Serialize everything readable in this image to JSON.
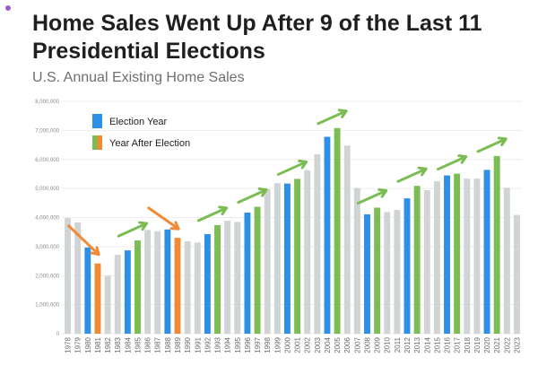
{
  "title": "Home Sales Went Up After 9 of the Last 11 Presidential Elections",
  "subtitle": "U.S. Annual Existing Home Sales",
  "colors": {
    "election": "#2e8fe6",
    "after_up": "#7bbd52",
    "after_down": "#f08a35",
    "other": "#d0d4d4",
    "arrow_up": "#7bbd52",
    "arrow_down": "#f08a35"
  },
  "chart_data": {
    "type": "bar",
    "title": "U.S. Annual Existing Home Sales",
    "ylim": [
      0,
      8000000
    ],
    "yticks": [
      0,
      1000000,
      2000000,
      3000000,
      4000000,
      5000000,
      6000000,
      7000000,
      8000000
    ],
    "ytick_labels": [
      "0",
      "1,000,000",
      "2,000,000",
      "3,000,000",
      "4,000,000",
      "5,000,000",
      "6,000,000",
      "7,000,000",
      "8,000,000"
    ],
    "grid": true,
    "legend_position": "top-left",
    "legend": [
      {
        "label": "Election Year",
        "color_key": "election"
      },
      {
        "label": "Year After Election",
        "color_key": "after_up"
      }
    ],
    "categories": [
      "1978",
      "1979",
      "1980",
      "1981",
      "1982",
      "1983",
      "1984",
      "1985",
      "1986",
      "1987",
      "1988",
      "1989",
      "1990",
      "1991",
      "1992",
      "1993",
      "1994",
      "1995",
      "1996",
      "1997",
      "1998",
      "1999",
      "2000",
      "2001",
      "2002",
      "2003",
      "2004",
      "2005",
      "2006",
      "2007",
      "2008",
      "2009",
      "2010",
      "2011",
      "2012",
      "2013",
      "2014",
      "2015",
      "2016",
      "2017",
      "2018",
      "2019",
      "2020",
      "2021",
      "2022",
      "2023"
    ],
    "values": [
      3980000,
      3830000,
      2970000,
      2420000,
      1990000,
      2720000,
      2870000,
      3210000,
      3570000,
      3530000,
      3590000,
      3300000,
      3180000,
      3140000,
      3430000,
      3740000,
      3890000,
      3850000,
      4170000,
      4370000,
      4970000,
      5180000,
      5170000,
      5330000,
      5630000,
      6180000,
      6780000,
      7080000,
      6480000,
      5020000,
      4110000,
      4340000,
      4190000,
      4260000,
      4660000,
      5090000,
      4940000,
      5250000,
      5450000,
      5510000,
      5340000,
      5340000,
      5640000,
      6120000,
      5030000,
      4090000
    ],
    "bar_types": [
      "other",
      "other",
      "election",
      "after_down",
      "other",
      "other",
      "election",
      "after_up",
      "other",
      "other",
      "election",
      "after_down",
      "other",
      "other",
      "election",
      "after_up",
      "other",
      "other",
      "election",
      "after_up",
      "other",
      "other",
      "election",
      "after_up",
      "other",
      "other",
      "election",
      "after_up",
      "other",
      "other",
      "election",
      "after_up",
      "other",
      "other",
      "election",
      "after_up",
      "other",
      "other",
      "election",
      "after_up",
      "other",
      "other",
      "election",
      "after_up",
      "other",
      "other"
    ],
    "arrows": [
      {
        "from": "1980",
        "to": "1981",
        "direction": "down"
      },
      {
        "from": "1984",
        "to": "1985",
        "direction": "up"
      },
      {
        "from": "1988",
        "to": "1989",
        "direction": "down"
      },
      {
        "from": "1992",
        "to": "1993",
        "direction": "up"
      },
      {
        "from": "1996",
        "to": "1997",
        "direction": "up"
      },
      {
        "from": "2000",
        "to": "2001",
        "direction": "up"
      },
      {
        "from": "2004",
        "to": "2005",
        "direction": "up"
      },
      {
        "from": "2008",
        "to": "2009",
        "direction": "up"
      },
      {
        "from": "2012",
        "to": "2013",
        "direction": "up"
      },
      {
        "from": "2016",
        "to": "2017",
        "direction": "up"
      },
      {
        "from": "2020",
        "to": "2021",
        "direction": "up"
      }
    ]
  }
}
